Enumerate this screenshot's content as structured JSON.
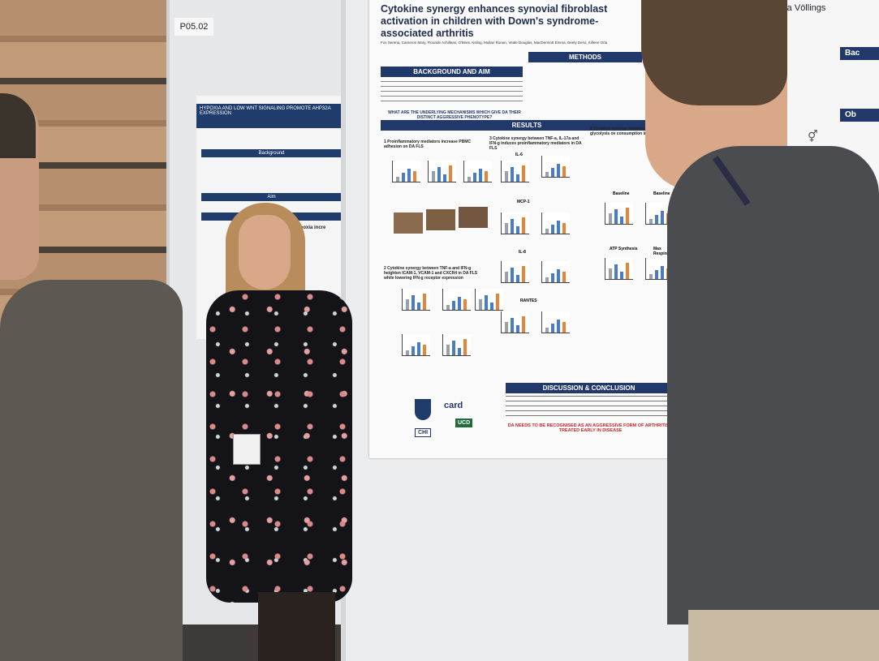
{
  "board": {
    "label": "P05.02"
  },
  "poster_left": {
    "title": "HYPOXIA AND LOW WNT SIGNALING PROMOTE AHP32A EXPRESSION",
    "sections": [
      "Background",
      "Aim",
      "Results"
    ],
    "results_heading": "Hypoxia incre"
  },
  "poster_main": {
    "title": "Cytokine synergy enhances synovial fibroblast activation in children with Down's syndrome-associated arthritis",
    "authors": "Fox Serena, Cameron Mary, Flouride Achilleas, O'Brien Aisling, Mullan Ronan, Veale Douglas, MacDermott Emma, Deely Dervi, Killeen Orla",
    "sections": {
      "background": "BACKGROUND AND AIM",
      "methods": "METHODS",
      "results": "RESULTS",
      "discussion": "DISCUSSION & CONCLUSION"
    },
    "question": "WHAT ARE THE UNDERLYING MECHANISMS WHICH GIVE DA THEIR DISTINCT AGGRESSIVE PHENOTYPE?",
    "result_headings": [
      "1 Proinflammatory mediators increase PBMC adhesion on DA FLS",
      "3 Cytokine synergy between TNF-a, IL-17a and IFN-g induces proinflammatory mediators in DA FLS",
      "4 Cytokine synergy between IL-17a favours glycolysis ov consumption in DA FL",
      "2 Cytokine synergy between TNF-a and IFN-g heighten ICAM-1, VCAM-1 and CXCR4 in DA FLS while lowering IFN-g receptor expression"
    ],
    "chart_labels": [
      "IL-6",
      "MCP-1",
      "IL-8",
      "RANTES",
      "Baseline",
      "Baseline",
      "ATP Synthesis",
      "Max Respiratory"
    ],
    "conclusion_highlight": "DA NEEDS TO BE RECOGNISED AS AN AGGRESSIVE FORM OF ARTHRITIS A TREATED EARLY IN DISEASE",
    "logos": [
      "card",
      "CHI",
      "UCD"
    ]
  },
  "poster_right": {
    "author": "onia Völlings",
    "section_back": "Bac",
    "section_obj": "Ob"
  },
  "colors": {
    "poster_navy": "#21386b",
    "bar_orange": "#e8833a",
    "bar_blue": "#4a7cc4",
    "bar_grey": "#9aa0a8"
  }
}
